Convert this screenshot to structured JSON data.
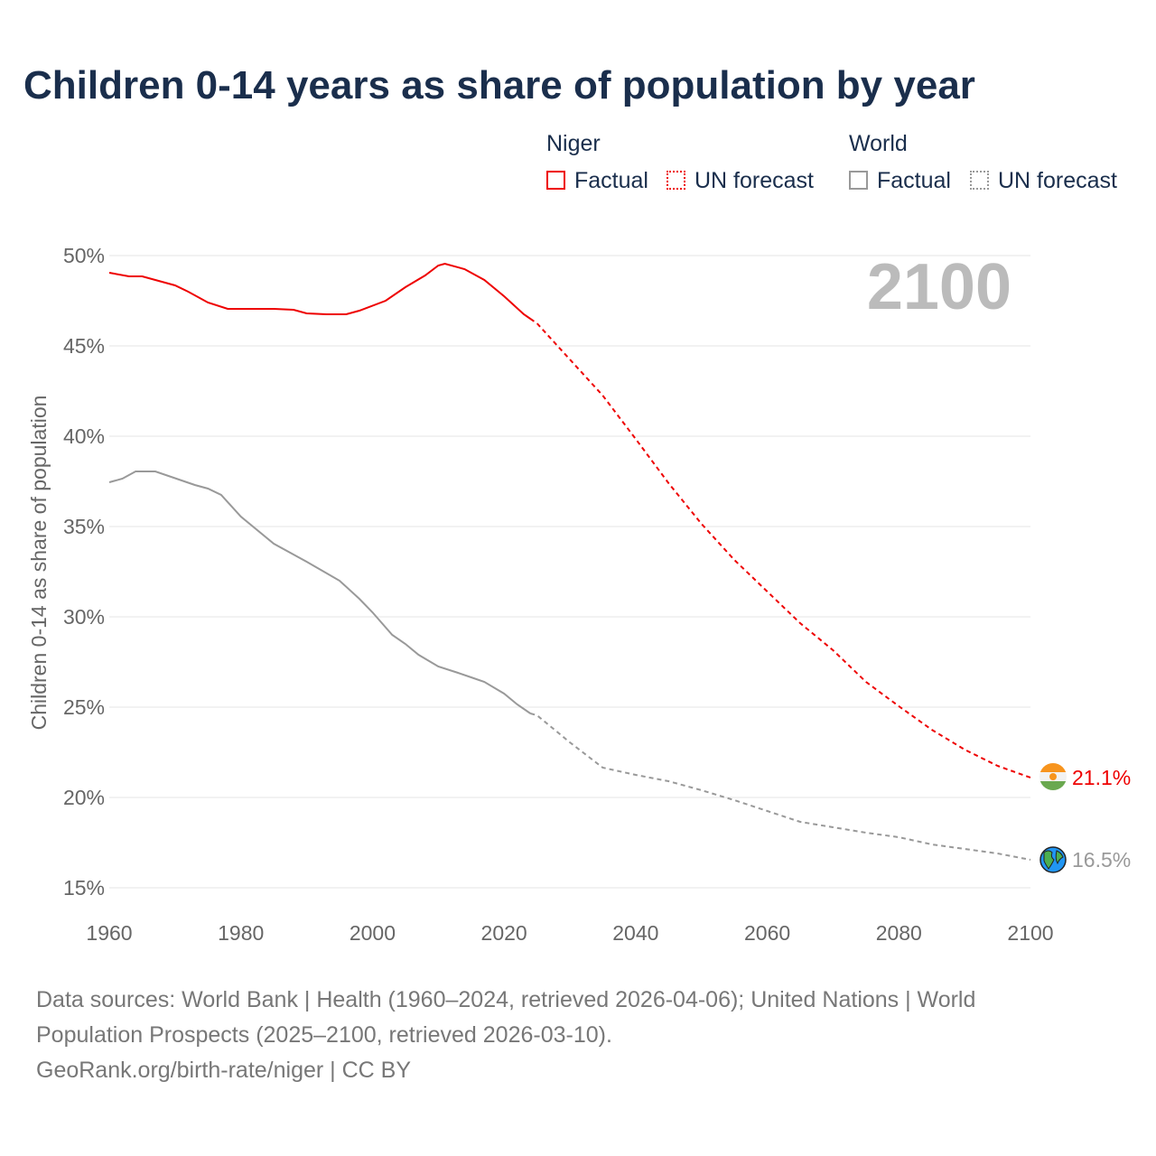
{
  "chart_data": {
    "type": "line",
    "title": "Children 0-14 years as share of population by year",
    "ylabel": "Children 0-14 as share of population",
    "xlabel": "",
    "xlim": [
      1960,
      2100
    ],
    "ylim": [
      15,
      50
    ],
    "xticks": [
      "1960",
      "1980",
      "2000",
      "2020",
      "2040",
      "2060",
      "2080",
      "2100"
    ],
    "yticks": [
      "15%",
      "20%",
      "25%",
      "30%",
      "35%",
      "40%",
      "45%",
      "50%"
    ],
    "year_label": "2100",
    "legend": {
      "groups": [
        {
          "name": "Niger",
          "factual": "Factual",
          "forecast": "UN forecast"
        },
        {
          "name": "World",
          "factual": "Factual",
          "forecast": "UN forecast"
        }
      ]
    },
    "series": [
      {
        "name": "Niger",
        "color": "#ee0000",
        "end_label": "21.1%",
        "factual": [
          [
            1960,
            49.05
          ],
          [
            1963,
            48.85
          ],
          [
            1965,
            48.85
          ],
          [
            1970,
            48.35
          ],
          [
            1972,
            48.0
          ],
          [
            1975,
            47.4
          ],
          [
            1978,
            47.05
          ],
          [
            1985,
            47.05
          ],
          [
            1988,
            47.0
          ],
          [
            1990,
            46.8
          ],
          [
            1993,
            46.75
          ],
          [
            1996,
            46.75
          ],
          [
            1998,
            46.95
          ],
          [
            2002,
            47.5
          ],
          [
            2005,
            48.25
          ],
          [
            2008,
            48.9
          ],
          [
            2010,
            49.45
          ],
          [
            2011,
            49.55
          ],
          [
            2014,
            49.25
          ],
          [
            2017,
            48.65
          ],
          [
            2020,
            47.75
          ],
          [
            2023,
            46.75
          ],
          [
            2024,
            46.5
          ]
        ],
        "forecast": [
          [
            2024,
            46.5
          ],
          [
            2025,
            46.25
          ],
          [
            2030,
            44.25
          ],
          [
            2035,
            42.25
          ],
          [
            2040,
            39.85
          ],
          [
            2045,
            37.4
          ],
          [
            2050,
            35.15
          ],
          [
            2055,
            33.15
          ],
          [
            2060,
            31.4
          ],
          [
            2065,
            29.65
          ],
          [
            2070,
            28.15
          ],
          [
            2075,
            26.4
          ],
          [
            2080,
            25.05
          ],
          [
            2085,
            23.75
          ],
          [
            2090,
            22.65
          ],
          [
            2095,
            21.75
          ],
          [
            2100,
            21.1
          ]
        ]
      },
      {
        "name": "World",
        "color": "#999999",
        "end_label": "16.5%",
        "factual": [
          [
            1960,
            37.45
          ],
          [
            1962,
            37.65
          ],
          [
            1964,
            38.05
          ],
          [
            1967,
            38.05
          ],
          [
            1971,
            37.55
          ],
          [
            1973,
            37.3
          ],
          [
            1975,
            37.1
          ],
          [
            1977,
            36.75
          ],
          [
            1980,
            35.55
          ],
          [
            1985,
            34.05
          ],
          [
            1990,
            33.05
          ],
          [
            1995,
            32.0
          ],
          [
            1998,
            31.0
          ],
          [
            2000,
            30.25
          ],
          [
            2003,
            29.0
          ],
          [
            2005,
            28.5
          ],
          [
            2007,
            27.9
          ],
          [
            2010,
            27.25
          ],
          [
            2013,
            26.9
          ],
          [
            2015,
            26.65
          ],
          [
            2017,
            26.4
          ],
          [
            2020,
            25.75
          ],
          [
            2022,
            25.15
          ],
          [
            2024,
            24.65
          ]
        ],
        "forecast": [
          [
            2024,
            24.65
          ],
          [
            2025,
            24.55
          ],
          [
            2030,
            23.05
          ],
          [
            2035,
            21.65
          ],
          [
            2040,
            21.25
          ],
          [
            2045,
            20.9
          ],
          [
            2050,
            20.4
          ],
          [
            2055,
            19.85
          ],
          [
            2060,
            19.25
          ],
          [
            2065,
            18.65
          ],
          [
            2070,
            18.35
          ],
          [
            2075,
            18.05
          ],
          [
            2080,
            17.8
          ],
          [
            2085,
            17.4
          ],
          [
            2090,
            17.15
          ],
          [
            2095,
            16.9
          ],
          [
            2100,
            16.55
          ]
        ]
      }
    ]
  },
  "sources": {
    "line1": "Data sources: World Bank | Health (1960–2024, retrieved 2026-04-06); United Nations | World Population Prospects (2025–2100, retrieved 2026-03-10).",
    "line2": "GeoRank.org/birth-rate/niger | CC BY"
  }
}
